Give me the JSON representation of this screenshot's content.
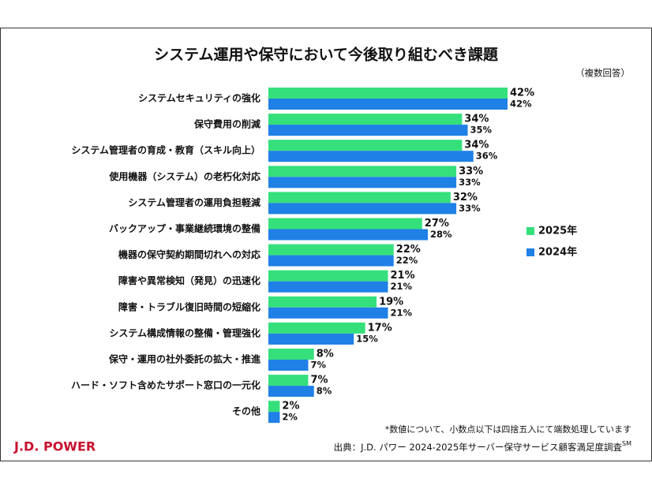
{
  "chart_data": {
    "type": "bar",
    "orientation": "horizontal",
    "title": "システム運用や保守において今後取り組むべき課題",
    "subtitle": "（複数回答）",
    "categories": [
      "システムセキュリティの強化",
      "保守費用の削減",
      "システム管理者の育成・教育（スキル向上）",
      "使用機器（システム）の老朽化対応",
      "システム管理者の運用負担軽減",
      "バックアップ・事業継続環境の整備",
      "機器の保守契約期間切れへの対応",
      "障害や異常検知（発見）の迅速化",
      "障害・トラブル復旧時間の短縮化",
      "システム構成情報の整備・管理強化",
      "保守・運用の社外委託の拡大・推進",
      "ハード・ソフト含めたサポート窓口の一元化",
      "その他"
    ],
    "series": [
      {
        "name": "2025年",
        "color": "#35e07c",
        "values": [
          42,
          34,
          34,
          33,
          32,
          27,
          22,
          21,
          19,
          17,
          8,
          7,
          2
        ],
        "value_labels": [
          "42%",
          "34%",
          "34%",
          "33%",
          "32%",
          "27%",
          "22%",
          "21%",
          "19%",
          "17%",
          "8%",
          "7%",
          "2%"
        ]
      },
      {
        "name": "2024年",
        "color": "#1f80e6",
        "values": [
          42,
          35,
          36,
          33,
          33,
          28,
          22,
          21,
          21,
          15,
          7,
          8,
          2
        ],
        "value_labels": [
          "42%",
          "35%",
          "36%",
          "33%",
          "33%",
          "28%",
          "22%",
          "21%",
          "21%",
          "15%",
          "7%",
          "8%",
          "2%"
        ]
      }
    ],
    "footnote": "*数値について、小数点以下は四捨五入にて端数処理しています",
    "source": "出典：J.D. パワー 2024-2025年サーバー保守サービス顧客満足度調査",
    "source_mark": "SM",
    "logo": "J.D. POWER"
  }
}
